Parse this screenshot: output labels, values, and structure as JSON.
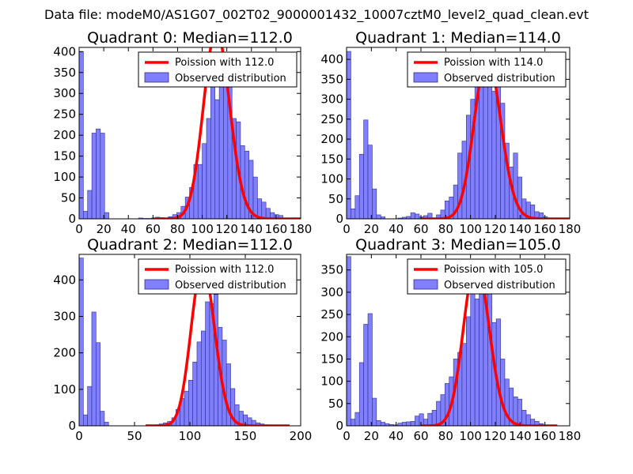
{
  "figure": {
    "suptitle": "Data file: modeM0/AS1G07_002T02_9000001432_10007cztM0_level2_quad_clean.evt",
    "colors": {
      "bar": "#7f7fff",
      "bar_edge": "#2e2e8a",
      "line": "#ff0000"
    }
  },
  "chart_data": [
    {
      "type": "bar",
      "title": "Quadrant 0: Median=112.0",
      "xlim": [
        0,
        180
      ],
      "ylim": [
        0,
        410
      ],
      "xticks": [
        "0",
        "20",
        "40",
        "60",
        "80",
        "100",
        "120",
        "140",
        "160",
        "180"
      ],
      "yticks": [
        "0",
        "50",
        "100",
        "150",
        "200",
        "250",
        "300",
        "350",
        "400"
      ],
      "legend": [
        "Poission with 112.0",
        "Observed distribution"
      ],
      "bin_width": 3.45,
      "bins": [
        [
          0,
          400
        ],
        [
          3.45,
          18
        ],
        [
          6.9,
          68
        ],
        [
          10.35,
          205
        ],
        [
          13.8,
          215
        ],
        [
          17.25,
          205
        ],
        [
          20.7,
          15
        ],
        [
          48.3,
          2
        ],
        [
          51.75,
          1
        ],
        [
          55.2,
          1
        ],
        [
          58.65,
          2
        ],
        [
          62.1,
          4
        ],
        [
          65.55,
          3
        ],
        [
          69,
          2
        ],
        [
          72.45,
          5
        ],
        [
          75.9,
          10
        ],
        [
          79.35,
          15
        ],
        [
          82.8,
          30
        ],
        [
          86.25,
          52
        ],
        [
          89.7,
          75
        ],
        [
          93.15,
          130
        ],
        [
          96.6,
          130
        ],
        [
          100.05,
          180
        ],
        [
          103.5,
          240
        ],
        [
          106.95,
          320
        ],
        [
          110.4,
          285
        ],
        [
          113.85,
          365
        ],
        [
          117.3,
          330
        ],
        [
          120.75,
          320
        ],
        [
          124.2,
          240
        ],
        [
          127.65,
          232
        ],
        [
          131.1,
          175
        ],
        [
          134.55,
          162
        ],
        [
          138,
          140
        ],
        [
          141.45,
          100
        ],
        [
          144.9,
          48
        ],
        [
          148.35,
          40
        ],
        [
          151.8,
          25
        ],
        [
          155.25,
          15
        ],
        [
          158.7,
          10
        ],
        [
          162.15,
          8
        ]
      ],
      "poisson": {
        "mean": 112.0,
        "peak": 450,
        "xmin": 60,
        "xmax": 180
      }
    },
    {
      "type": "bar",
      "title": "Quadrant 1: Median=114.0",
      "xlim": [
        0,
        180
      ],
      "ylim": [
        0,
        430
      ],
      "xticks": [
        "0",
        "20",
        "40",
        "60",
        "80",
        "100",
        "120",
        "140",
        "160",
        "180"
      ],
      "yticks": [
        "0",
        "50",
        "100",
        "150",
        "200",
        "250",
        "300",
        "350",
        "400"
      ],
      "legend": [
        "Poission with 114.0",
        "Observed distribution"
      ],
      "bin_width": 3.45,
      "bins": [
        [
          0,
          420
        ],
        [
          3.45,
          25
        ],
        [
          6.9,
          58
        ],
        [
          10.35,
          162
        ],
        [
          13.8,
          248
        ],
        [
          17.25,
          185
        ],
        [
          20.7,
          75
        ],
        [
          24.15,
          10
        ],
        [
          27.6,
          5
        ],
        [
          41.4,
          2
        ],
        [
          44.85,
          4
        ],
        [
          48.3,
          6
        ],
        [
          51.75,
          15
        ],
        [
          55.2,
          12
        ],
        [
          58.65,
          5
        ],
        [
          62.1,
          8
        ],
        [
          65.55,
          14
        ],
        [
          69,
          2
        ],
        [
          72.45,
          10
        ],
        [
          75.9,
          22
        ],
        [
          79.35,
          45
        ],
        [
          82.8,
          55
        ],
        [
          86.25,
          85
        ],
        [
          89.7,
          165
        ],
        [
          93.15,
          195
        ],
        [
          96.6,
          260
        ],
        [
          100.05,
          300
        ],
        [
          103.5,
          350
        ],
        [
          106.95,
          380
        ],
        [
          110.4,
          390
        ],
        [
          113.85,
          370
        ],
        [
          117.3,
          320
        ],
        [
          120.75,
          360
        ],
        [
          124.2,
          290
        ],
        [
          127.65,
          190
        ],
        [
          131.1,
          130
        ],
        [
          134.55,
          165
        ],
        [
          138,
          105
        ],
        [
          141.45,
          50
        ],
        [
          144.9,
          42
        ],
        [
          148.35,
          35
        ],
        [
          151.8,
          18
        ],
        [
          155.25,
          15
        ],
        [
          158.7,
          5
        ]
      ],
      "poisson": {
        "mean": 114.0,
        "peak": 405,
        "xmin": 60,
        "xmax": 180
      }
    },
    {
      "type": "bar",
      "title": "Quadrant 2: Median=112.0",
      "xlim": [
        0,
        200
      ],
      "ylim": [
        0,
        470
      ],
      "xticks": [
        "0",
        "50",
        "100",
        "150",
        "200"
      ],
      "yticks": [
        "0",
        "100",
        "200",
        "300",
        "400"
      ],
      "legend": [
        "Poission with 112.0",
        "Observed distribution"
      ],
      "bin_width": 3.8,
      "bins": [
        [
          0,
          460
        ],
        [
          3.8,
          30
        ],
        [
          7.6,
          108
        ],
        [
          11.4,
          312
        ],
        [
          15.2,
          228
        ],
        [
          19,
          40
        ],
        [
          22.8,
          10
        ],
        [
          60.8,
          3
        ],
        [
          68.4,
          3
        ],
        [
          72.2,
          5
        ],
        [
          76,
          8
        ],
        [
          79.8,
          12
        ],
        [
          83.6,
          22
        ],
        [
          87.4,
          45
        ],
        [
          91.2,
          75
        ],
        [
          95,
          95
        ],
        [
          98.8,
          125
        ],
        [
          102.6,
          175
        ],
        [
          106.4,
          230
        ],
        [
          110.2,
          260
        ],
        [
          114,
          340
        ],
        [
          117.8,
          335
        ],
        [
          121.6,
          360
        ],
        [
          125.4,
          270
        ],
        [
          129.2,
          235
        ],
        [
          133,
          170
        ],
        [
          136.8,
          102
        ],
        [
          140.6,
          58
        ],
        [
          144.4,
          40
        ],
        [
          148.2,
          30
        ],
        [
          152,
          22
        ],
        [
          155.8,
          15
        ],
        [
          159.6,
          8
        ],
        [
          163.4,
          5
        ],
        [
          167.2,
          3
        ]
      ],
      "poisson": {
        "mean": 112.0,
        "peak": 440,
        "xmin": 60,
        "xmax": 190
      }
    },
    {
      "type": "bar",
      "title": "Quadrant 3: Median=105.0",
      "xlim": [
        0,
        180
      ],
      "ylim": [
        0,
        385
      ],
      "xticks": [
        "0",
        "20",
        "40",
        "60",
        "80",
        "100",
        "120",
        "140",
        "160",
        "180"
      ],
      "yticks": [
        "0",
        "50",
        "100",
        "150",
        "200",
        "250",
        "300",
        "350"
      ],
      "legend": [
        "Poission with 105.0",
        "Observed distribution"
      ],
      "bin_width": 3.45,
      "bins": [
        [
          0,
          380
        ],
        [
          3.45,
          15
        ],
        [
          6.9,
          30
        ],
        [
          10.35,
          142
        ],
        [
          13.8,
          228
        ],
        [
          17.25,
          252
        ],
        [
          20.7,
          62
        ],
        [
          24.15,
          12
        ],
        [
          27.6,
          8
        ],
        [
          31.05,
          5
        ],
        [
          34.5,
          3
        ],
        [
          37.95,
          2
        ],
        [
          41.4,
          6
        ],
        [
          44.85,
          8
        ],
        [
          48.3,
          9
        ],
        [
          51.75,
          10
        ],
        [
          55.2,
          22
        ],
        [
          58.65,
          27
        ],
        [
          62.1,
          15
        ],
        [
          65.55,
          28
        ],
        [
          69,
          35
        ],
        [
          72.45,
          55
        ],
        [
          75.9,
          70
        ],
        [
          79.35,
          95
        ],
        [
          82.8,
          110
        ],
        [
          86.25,
          150
        ],
        [
          89.7,
          165
        ],
        [
          93.15,
          185
        ],
        [
          96.6,
          245
        ],
        [
          100.05,
          300
        ],
        [
          103.5,
          285
        ],
        [
          106.95,
          350
        ],
        [
          110.4,
          340
        ],
        [
          113.85,
          320
        ],
        [
          117.3,
          232
        ],
        [
          120.75,
          240
        ],
        [
          124.2,
          150
        ],
        [
          127.65,
          105
        ],
        [
          131.1,
          85
        ],
        [
          134.55,
          65
        ],
        [
          138,
          60
        ],
        [
          141.45,
          35
        ],
        [
          144.9,
          25
        ],
        [
          148.35,
          15
        ],
        [
          151.8,
          10
        ],
        [
          155.25,
          5
        ]
      ],
      "poisson": {
        "mean": 105.0,
        "peak": 368,
        "xmin": 60,
        "xmax": 170
      }
    }
  ]
}
